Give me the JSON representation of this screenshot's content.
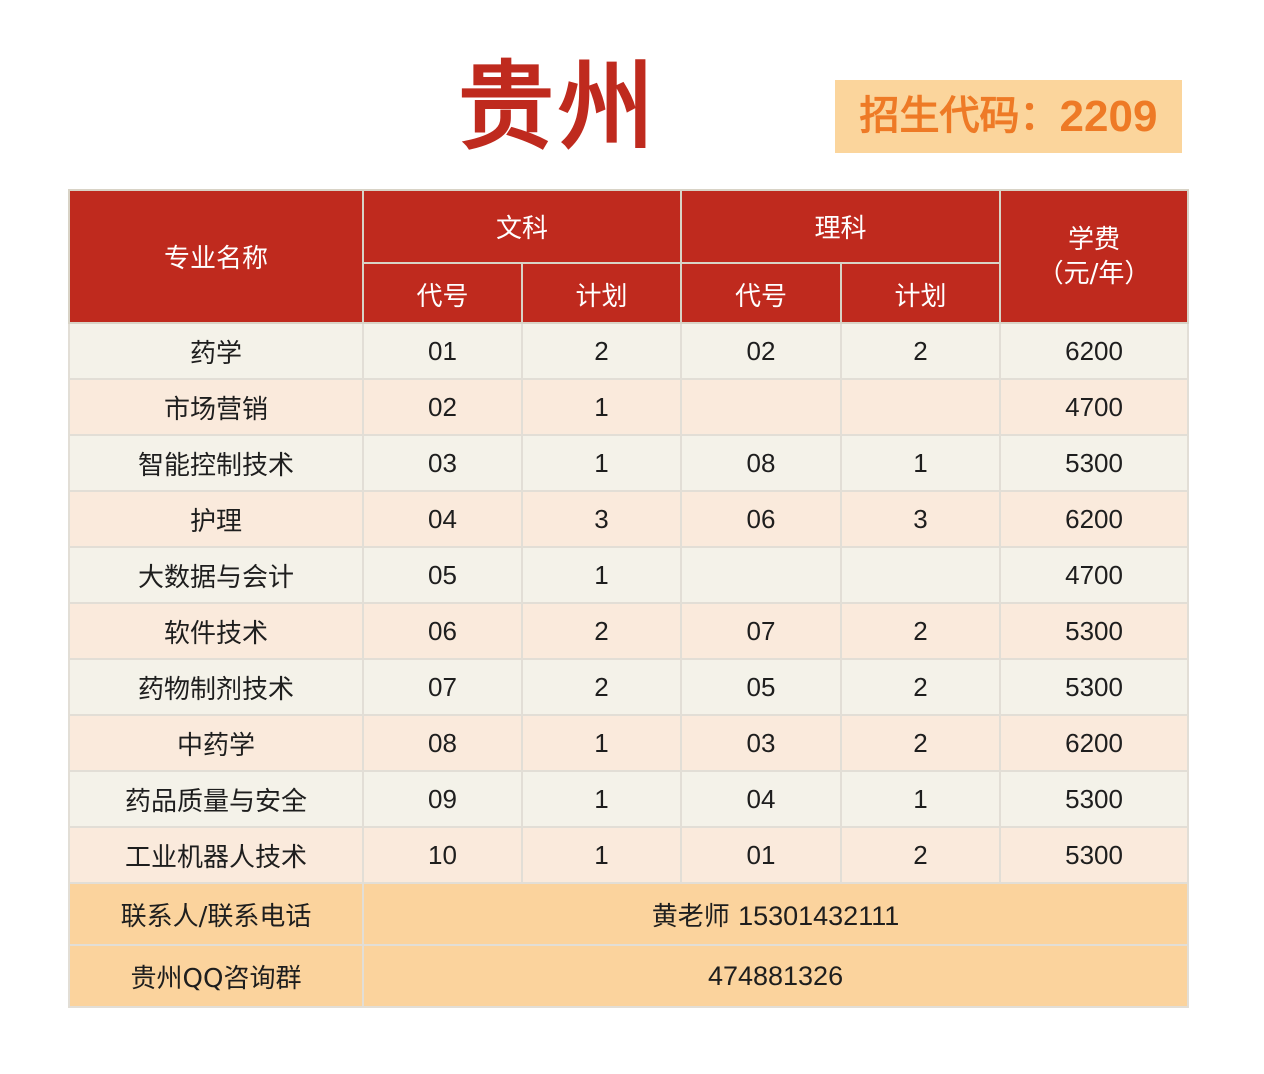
{
  "title": "贵州",
  "enrollment_code": {
    "label": "招生代码：",
    "value": "2209"
  },
  "table": {
    "headers": {
      "major": "专业名称",
      "liberal_arts": "文科",
      "science": "理科",
      "fee_line1": "学费",
      "fee_line2": "（元/年）",
      "code": "代号",
      "plan": "计划"
    },
    "rows": [
      {
        "major": "药学",
        "wen_code": "01",
        "wen_plan": "2",
        "li_code": "02",
        "li_plan": "2",
        "fee": "6200"
      },
      {
        "major": "市场营销",
        "wen_code": "02",
        "wen_plan": "1",
        "li_code": "",
        "li_plan": "",
        "fee": "4700"
      },
      {
        "major": "智能控制技术",
        "wen_code": "03",
        "wen_plan": "1",
        "li_code": "08",
        "li_plan": "1",
        "fee": "5300"
      },
      {
        "major": "护理",
        "wen_code": "04",
        "wen_plan": "3",
        "li_code": "06",
        "li_plan": "3",
        "fee": "6200"
      },
      {
        "major": "大数据与会计",
        "wen_code": "05",
        "wen_plan": "1",
        "li_code": "",
        "li_plan": "",
        "fee": "4700"
      },
      {
        "major": "软件技术",
        "wen_code": "06",
        "wen_plan": "2",
        "li_code": "07",
        "li_plan": "2",
        "fee": "5300"
      },
      {
        "major": "药物制剂技术",
        "wen_code": "07",
        "wen_plan": "2",
        "li_code": "05",
        "li_plan": "2",
        "fee": "5300"
      },
      {
        "major": "中药学",
        "wen_code": "08",
        "wen_plan": "1",
        "li_code": "03",
        "li_plan": "2",
        "fee": "6200"
      },
      {
        "major": "药品质量与安全",
        "wen_code": "09",
        "wen_plan": "1",
        "li_code": "04",
        "li_plan": "1",
        "fee": "5300"
      },
      {
        "major": "工业机器人技术",
        "wen_code": "10",
        "wen_plan": "1",
        "li_code": "01",
        "li_plan": "2",
        "fee": "5300"
      }
    ],
    "contact": {
      "label": "联系人/联系电话",
      "name": "黄老师",
      "phone": "15301432111"
    },
    "qq_group": {
      "label": "贵州QQ咨询群",
      "value": "474881326"
    }
  }
}
